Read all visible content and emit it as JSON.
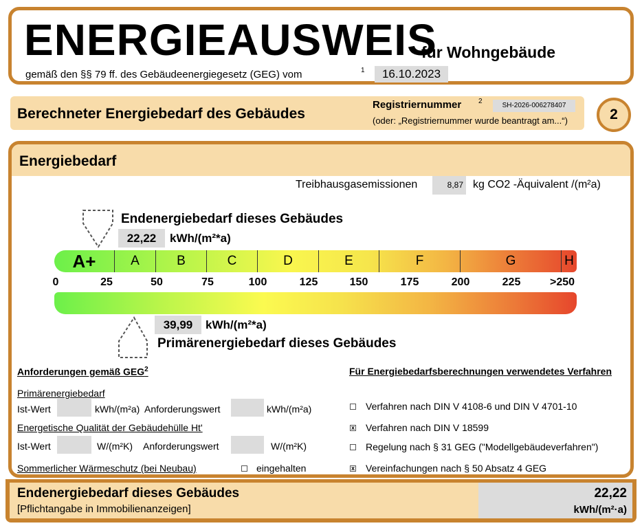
{
  "header": {
    "title": "ENERGIEAUSWEIS",
    "subtitle": "für Wohngebäude",
    "legal": "gemäß den §§ 79 ff. des Gebäudeenergiegesetz (GEG) vom",
    "footnote": "1",
    "date": "16.10.2023"
  },
  "section": {
    "title": "Berechneter Energiebedarf des Gebäudes",
    "reg_label": "Registriernummer",
    "reg_sup": "2",
    "reg_value": "SH-2026-006278407",
    "reg_hint": "(oder: „Registriernummer wurde beantragt am...“)",
    "page_number": "2"
  },
  "main": {
    "title": "Energiebedarf",
    "ghg_label": "Treibhausgasemissionen",
    "ghg_value": "8,87",
    "ghg_unit": "kg CO2 -Äquivalent /(m²a)",
    "end_label": "Endenergiebedarf dieses Gebäudes",
    "end_value": "22,22",
    "end_unit": "kWh/(m²*a)",
    "primary_label": "Primärenergiebedarf dieses Gebäudes",
    "primary_value": "39,99",
    "primary_unit": "kWh/(m²*a)",
    "classes": [
      "A+",
      "A",
      "B",
      "C",
      "D",
      "E",
      "F",
      "G",
      "H"
    ],
    "ticks": [
      "0",
      "25",
      "50",
      "75",
      "100",
      "125",
      "150",
      "175",
      "200",
      "225",
      ">250"
    ]
  },
  "requirements": {
    "title": "Anforderungen gemäß GEG",
    "sup": "2",
    "primary": "Primärenergiebedarf",
    "ist": "Ist-Wert",
    "kwh": "kWh/(m²a)",
    "anf": "Anforderungswert",
    "envelope": "Energetische Qualität der Gebäudehülle Ht'",
    "wmk": "W/(m²K)",
    "summer": "Sommerlicher Wärmeschutz (bei Neubau)",
    "kept": "eingehalten"
  },
  "methods": {
    "title": "Für Energiebedarfsberechnungen verwendetes Verfahren",
    "items": [
      {
        "label": "Verfahren nach DIN V 4108-6 und DIN V 4701-10",
        "checked": false
      },
      {
        "label": "Verfahren nach DIN V 18599",
        "checked": true
      },
      {
        "label": "Regelung nach § 31 GEG (\"Modellgebäudeverfahren\")",
        "checked": false
      },
      {
        "label": "Vereinfachungen nach § 50 Absatz 4 GEG",
        "checked": true
      }
    ]
  },
  "footer": {
    "title": "Endenergiebedarf dieses Gebäudes",
    "note": "[Pflichtangabe in Immobilienanzeigen]",
    "value": "22,22",
    "unit": "kWh/(m²·a)"
  },
  "colors": {
    "border": "#c8832f",
    "band": "#f8dcaa",
    "field": "#dcdcdc"
  }
}
